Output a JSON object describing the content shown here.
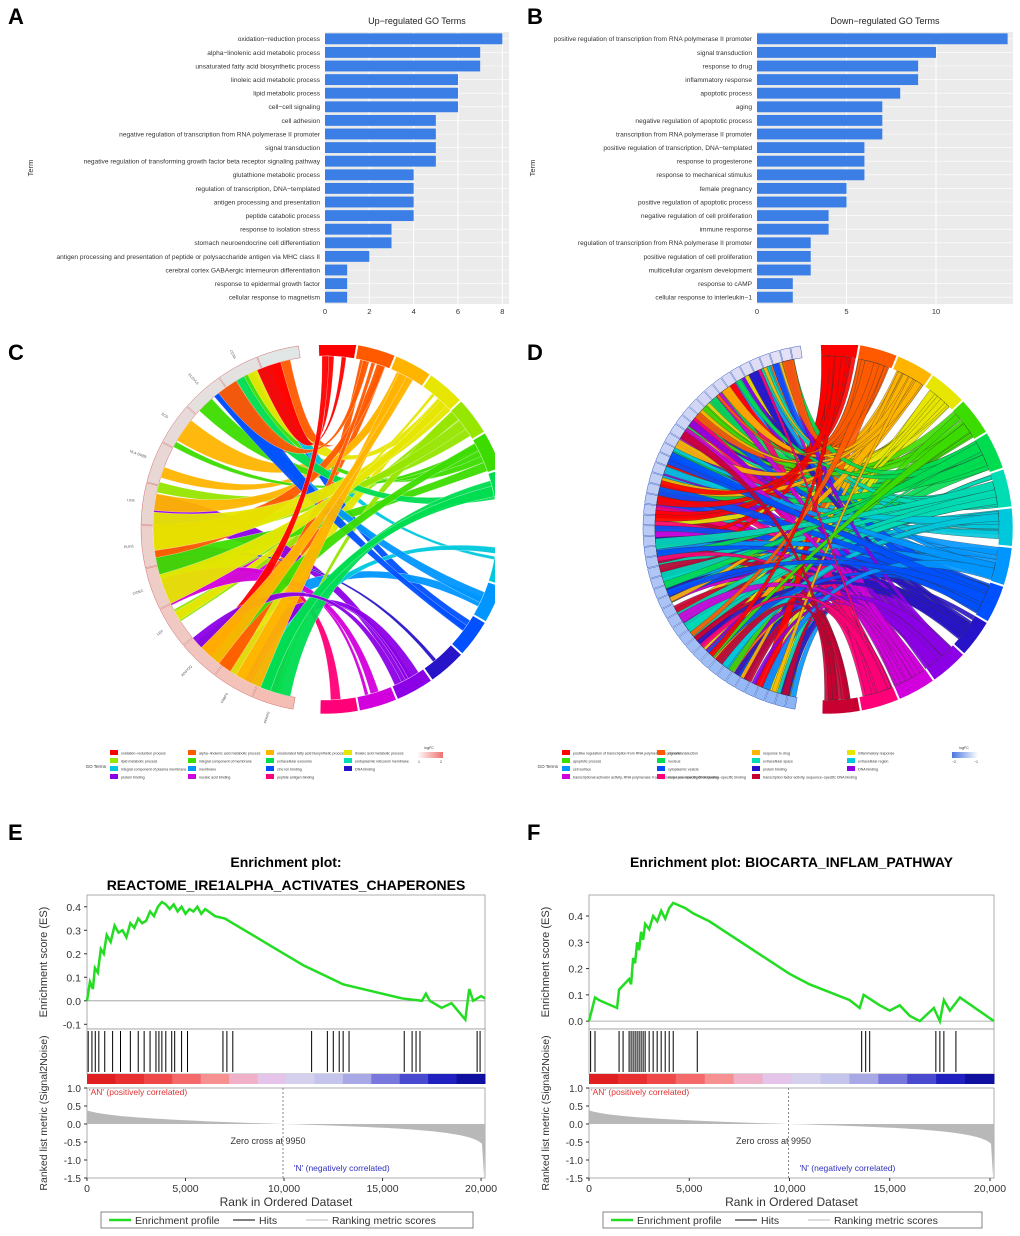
{
  "panels": {
    "A": "A",
    "B": "B",
    "C": "C",
    "D": "D",
    "E": "E",
    "F": "F"
  },
  "colors": {
    "bar": "#3b7fe6",
    "grid_bg": "#ebebeb",
    "es_line": "#22dd22",
    "hit": "#000000",
    "metric": "#b8b8b8",
    "pos_text": "#e03030",
    "neg_text": "#3030c0"
  },
  "chart_data": [
    {
      "id": "A",
      "type": "bar",
      "orientation": "horizontal",
      "title": "Up−regulated GO Terms",
      "ylabel": "Term",
      "xlabel": "",
      "xlim": [
        0,
        8.3
      ],
      "xticks": [
        "0",
        "2",
        "4",
        "6",
        "8"
      ],
      "xtick_values": [
        0,
        2,
        4,
        6,
        8
      ],
      "categories": [
        "oxidation−reduction process",
        "alpha−linolenic acid metabolic process",
        "unsaturated fatty acid biosynthetic process",
        "linoleic acid metabolic process",
        "lipid metabolic process",
        "cell−cell signaling",
        "cell adhesion",
        "negative regulation of transcription from RNA polymerase II promoter",
        "signal transduction",
        "negative regulation of transforming growth factor beta receptor signaling pathway",
        "glutathione metabolic process",
        "regulation of transcription, DNA−templated",
        "antigen processing and presentation",
        "peptide catabolic process",
        "response to isolation stress",
        "stomach neuroendocrine cell differentiation",
        "antigen processing and presentation of peptide or polysaccharide antigen via MHC class II",
        "cerebral cortex GABAergic interneuron differentiation",
        "response to epidermal growth factor",
        "cellular response to magnetism"
      ],
      "values": [
        8,
        7,
        7,
        6,
        6,
        6,
        5,
        5,
        5,
        5,
        4,
        4,
        4,
        4,
        3,
        3,
        2,
        1,
        1,
        1
      ]
    },
    {
      "id": "B",
      "type": "bar",
      "orientation": "horizontal",
      "title": "Down−regulated GO Terms",
      "ylabel": "Term",
      "xlabel": "",
      "xlim": [
        0,
        14.3
      ],
      "xticks": [
        "0",
        "5",
        "10"
      ],
      "xtick_values": [
        0,
        5,
        10
      ],
      "categories": [
        "positive regulation of transcription from RNA polymerase II promoter",
        "signal transduction",
        "response to drug",
        "inflammatory response",
        "apoptotic process",
        "aging",
        "negative regulation of apoptotic process",
        "transcription from RNA polymerase II promoter",
        "positive regulation of transcription, DNA−templated",
        "response to progesterone",
        "response to mechanical stimulus",
        "female pregnancy",
        "positive regulation of apoptotic process",
        "negative regulation of cell proliferation",
        "immune response",
        "regulation of transcription from RNA polymerase II promoter",
        "positive regulation of cell proliferation",
        "multicellular organism development",
        "response to cAMP",
        "cellular response to interleukin−1"
      ],
      "values": [
        14,
        10,
        9,
        9,
        8,
        7,
        7,
        7,
        6,
        6,
        6,
        5,
        5,
        4,
        4,
        3,
        3,
        3,
        2,
        2
      ]
    },
    {
      "id": "C",
      "type": "chord",
      "legend_title": "GO Terms",
      "scale_label": "logFC",
      "scale_ticks": [
        "1",
        "2"
      ],
      "genes": [
        "PPARG",
        "FABP4",
        "ADIPOQ",
        "LEP",
        "CIDEC",
        "PLIN1",
        "LIPE",
        "HLA-DRB5",
        "SCD",
        "ELOVL6",
        "CD36",
        "RBP4"
      ],
      "legend": [
        {
          "label": "oxidation−reduction process",
          "color": "#ff0000"
        },
        {
          "label": "alpha−linolenic acid metabolic process",
          "color": "#ff5a00"
        },
        {
          "label": "unsaturated fatty acid biosynthetic process",
          "color": "#ffb400"
        },
        {
          "label": "linoleic acid metabolic process",
          "color": "#e6e600"
        },
        {
          "label": "lipid metabolic process",
          "color": "#96e600"
        },
        {
          "label": "integral component of membrane",
          "color": "#3cdc00"
        },
        {
          "label": "extracellular exosome",
          "color": "#00dc50"
        },
        {
          "label": "endoplasmic reticulum membrane",
          "color": "#00dcb4"
        },
        {
          "label": "integral component of plasma membrane",
          "color": "#00c8dc"
        },
        {
          "label": "membrane",
          "color": "#0096ff"
        },
        {
          "label": "zinc ion binding",
          "color": "#0050ff"
        },
        {
          "label": "DNA binding",
          "color": "#2814c8"
        },
        {
          "label": "protein binding",
          "color": "#8c00e6"
        },
        {
          "label": "nucleic acid binding",
          "color": "#d200dc"
        },
        {
          "label": "peptide antigen binding",
          "color": "#ff0078"
        }
      ]
    },
    {
      "id": "D",
      "type": "chord",
      "legend_title": "GO Terms",
      "scale_label": "logFC",
      "scale_ticks": [
        "−2",
        "−1"
      ],
      "legend": [
        {
          "label": "positive regulation of transcription from RNA polymerase II promoter",
          "color": "#ff0000"
        },
        {
          "label": "signal transduction",
          "color": "#ff5a00"
        },
        {
          "label": "response to drug",
          "color": "#ffb400"
        },
        {
          "label": "inflammatory response",
          "color": "#e6e600"
        },
        {
          "label": "apoptotic process",
          "color": "#3cdc00"
        },
        {
          "label": "nucleus",
          "color": "#00dc50"
        },
        {
          "label": "extracellular space",
          "color": "#00dcb4"
        },
        {
          "label": "extracellular region",
          "color": "#00c8dc"
        },
        {
          "label": "cell surface",
          "color": "#0096ff"
        },
        {
          "label": "cytoplasmic vesicle",
          "color": "#0050ff"
        },
        {
          "label": "protein binding",
          "color": "#2814c8"
        },
        {
          "label": "DNA binding",
          "color": "#8c00e6"
        },
        {
          "label": "transcriptional activator activity, RNA polymerase II core promoter proximal region sequence−specific binding",
          "color": "#d200dc"
        },
        {
          "label": "sequence−specific DNA binding",
          "color": "#ff0078"
        },
        {
          "label": "transcription factor activity, sequence−specific DNA binding",
          "color": "#c80032"
        }
      ]
    },
    {
      "id": "E",
      "type": "line",
      "title_line1": "Enrichment plot:",
      "title_line2": "REACTOME_IRE1ALPHA_ACTIVATES_CHAPERONES",
      "ylabel_es": "Enrichment score (ES)",
      "ylabel_metric": "Ranked list metric (Signal2Noise)",
      "xlabel": "Rank in Ordered Dataset",
      "es_ylim": [
        -0.12,
        0.45
      ],
      "es_yticks": [
        "0.4",
        "0.3",
        "0.2",
        "0.1",
        "0.0",
        "-0.1"
      ],
      "es_ytick_values": [
        0.4,
        0.3,
        0.2,
        0.1,
        0.0,
        -0.1
      ],
      "metric_ylim": [
        -1.5,
        1.0
      ],
      "metric_yticks": [
        "1.0",
        "0.5",
        "0.0",
        "-0.5",
        "-1.0",
        "-1.5"
      ],
      "metric_ytick_values": [
        1.0,
        0.5,
        0.0,
        -0.5,
        -1.0,
        -1.5
      ],
      "xlim": [
        0,
        20200
      ],
      "xticks": [
        "0",
        "5,000",
        "10,000",
        "15,000",
        "20,000"
      ],
      "xtick_values": [
        0,
        5000,
        10000,
        15000,
        20000
      ],
      "zero_cross_text": "Zero cross at 9950",
      "zero_cross": 9950,
      "pos_label": "'AN' (positively correlated)",
      "neg_label": "'N' (negatively correlated)",
      "legend": [
        "Enrichment profile",
        "Hits",
        "Ranking metric scores"
      ],
      "es_x": [
        0,
        150,
        300,
        400,
        550,
        700,
        850,
        1000,
        1200,
        1400,
        1600,
        1800,
        2000,
        2200,
        2400,
        2600,
        2800,
        3000,
        3200,
        3400,
        3600,
        3800,
        4000,
        4200,
        4400,
        4600,
        4800,
        5000,
        5200,
        5400,
        5600,
        5800,
        6000,
        6500,
        7000,
        8000,
        9000,
        10000,
        11000,
        12000,
        13000,
        14000,
        15000,
        16000,
        17000,
        17200,
        17400,
        18000,
        18500,
        19200,
        19400,
        19600,
        20000,
        20200
      ],
      "es_y": [
        0.0,
        0.08,
        0.05,
        0.14,
        0.12,
        0.22,
        0.2,
        0.28,
        0.25,
        0.32,
        0.29,
        0.3,
        0.27,
        0.33,
        0.31,
        0.35,
        0.33,
        0.34,
        0.38,
        0.36,
        0.4,
        0.42,
        0.41,
        0.39,
        0.41,
        0.38,
        0.4,
        0.37,
        0.39,
        0.38,
        0.4,
        0.37,
        0.39,
        0.36,
        0.35,
        0.3,
        0.25,
        0.2,
        0.15,
        0.11,
        0.07,
        0.05,
        0.03,
        0.01,
        0.0,
        0.03,
        0.0,
        -0.03,
        -0.01,
        -0.08,
        0.05,
        0.0,
        0.02,
        0.01
      ],
      "hits": [
        60,
        250,
        420,
        600,
        900,
        1300,
        1700,
        2200,
        2600,
        2900,
        3200,
        3500,
        3650,
        3800,
        4000,
        4300,
        4450,
        4800,
        5100,
        6900,
        7100,
        7400,
        11400,
        12200,
        12500,
        12800,
        13000,
        13300,
        16100,
        16500,
        16700,
        16900,
        19800,
        19950
      ]
    },
    {
      "id": "F",
      "type": "line",
      "title_line1": "Enrichment plot: BIOCARTA_INFLAM_PATHWAY",
      "title_line2": "",
      "ylabel_es": "Enrichment score (ES)",
      "ylabel_metric": "Ranked list metric (Signal2Noise)",
      "xlabel": "Rank in Ordered Dataset",
      "es_ylim": [
        -0.03,
        0.48
      ],
      "es_yticks": [
        "0.4",
        "0.3",
        "0.2",
        "0.1",
        "0.0"
      ],
      "es_ytick_values": [
        0.4,
        0.3,
        0.2,
        0.1,
        0.0
      ],
      "metric_ylim": [
        -1.5,
        1.0
      ],
      "metric_yticks": [
        "1.0",
        "0.5",
        "0.0",
        "-0.5",
        "-1.0",
        "-1.5"
      ],
      "metric_ytick_values": [
        1.0,
        0.5,
        0.0,
        -0.5,
        -1.0,
        -1.5
      ],
      "xlim": [
        0,
        20200
      ],
      "xticks": [
        "0",
        "5,000",
        "10,000",
        "15,000",
        "20,000"
      ],
      "xtick_values": [
        0,
        5000,
        10000,
        15000,
        20000
      ],
      "zero_cross_text": "Zero cross at 9950",
      "zero_cross": 9950,
      "pos_label": "'AN' (positively correlated)",
      "neg_label": "'N' (negatively correlated)",
      "legend": [
        "Enrichment profile",
        "Hits",
        "Ranking metric scores"
      ],
      "es_x": [
        0,
        300,
        500,
        1400,
        1500,
        2000,
        2100,
        2200,
        2300,
        2400,
        2500,
        2600,
        2700,
        2800,
        3000,
        3200,
        3400,
        3600,
        3800,
        4000,
        4200,
        4500,
        4800,
        5200,
        6000,
        7000,
        8000,
        9000,
        10000,
        11000,
        12000,
        13000,
        13500,
        13700,
        14500,
        15000,
        15500,
        16000,
        16500,
        17200,
        17500,
        17700,
        18000,
        18500,
        20200
      ],
      "es_y": [
        0.0,
        0.09,
        0.08,
        0.05,
        0.12,
        0.16,
        0.14,
        0.24,
        0.22,
        0.3,
        0.27,
        0.34,
        0.31,
        0.37,
        0.35,
        0.4,
        0.38,
        0.42,
        0.39,
        0.43,
        0.45,
        0.44,
        0.43,
        0.41,
        0.38,
        0.33,
        0.28,
        0.23,
        0.18,
        0.14,
        0.11,
        0.08,
        0.05,
        0.1,
        0.06,
        0.04,
        0.06,
        0.02,
        0.0,
        0.05,
        0.0,
        0.08,
        0.04,
        0.09,
        0.0
      ],
      "hits": [
        80,
        300,
        1500,
        1700,
        2000,
        2100,
        2200,
        2300,
        2400,
        2500,
        2600,
        2700,
        2800,
        3000,
        3200,
        3400,
        3600,
        3800,
        4000,
        4200,
        5400,
        13600,
        13800,
        14000,
        17300,
        17500,
        17700,
        18300
      ]
    }
  ]
}
